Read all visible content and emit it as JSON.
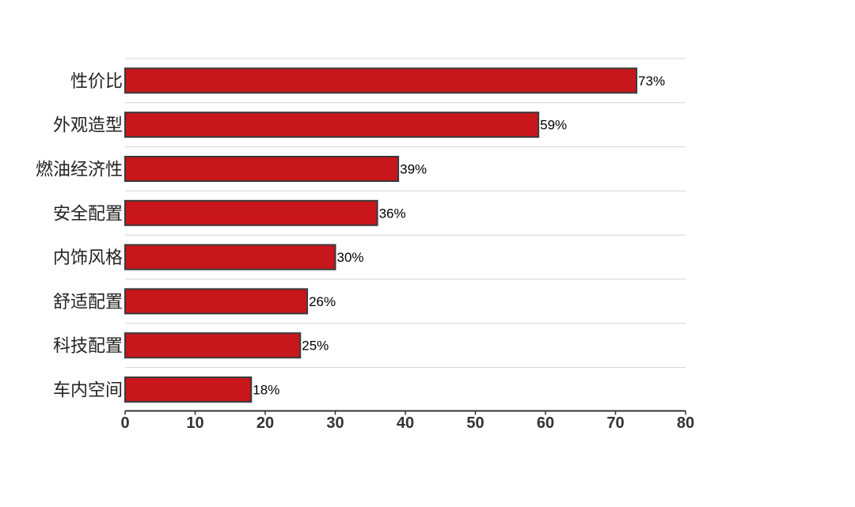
{
  "chart_data": {
    "type": "bar",
    "orientation": "horizontal",
    "categories": [
      "性价比",
      "外观造型",
      "燃油经济性",
      "安全配置",
      "内饰风格",
      "舒适配置",
      "科技配置",
      "车内空间"
    ],
    "values": [
      73,
      59,
      39,
      36,
      30,
      26,
      25,
      18
    ],
    "value_labels": [
      "73%",
      "59%",
      "39%",
      "36%",
      "30%",
      "26%",
      "25%",
      "18%"
    ],
    "xlim": [
      0,
      80
    ],
    "x_ticks": [
      "0",
      "10",
      "20",
      "30",
      "40",
      "50",
      "60",
      "70",
      "80"
    ],
    "title": "",
    "xlabel": "",
    "ylabel": "",
    "grid": true,
    "colors": {
      "bar_fill": "#c8161d",
      "bar_stroke": "#3a3a3a",
      "grid": "#d4d4d4",
      "axis": "#333333"
    }
  }
}
